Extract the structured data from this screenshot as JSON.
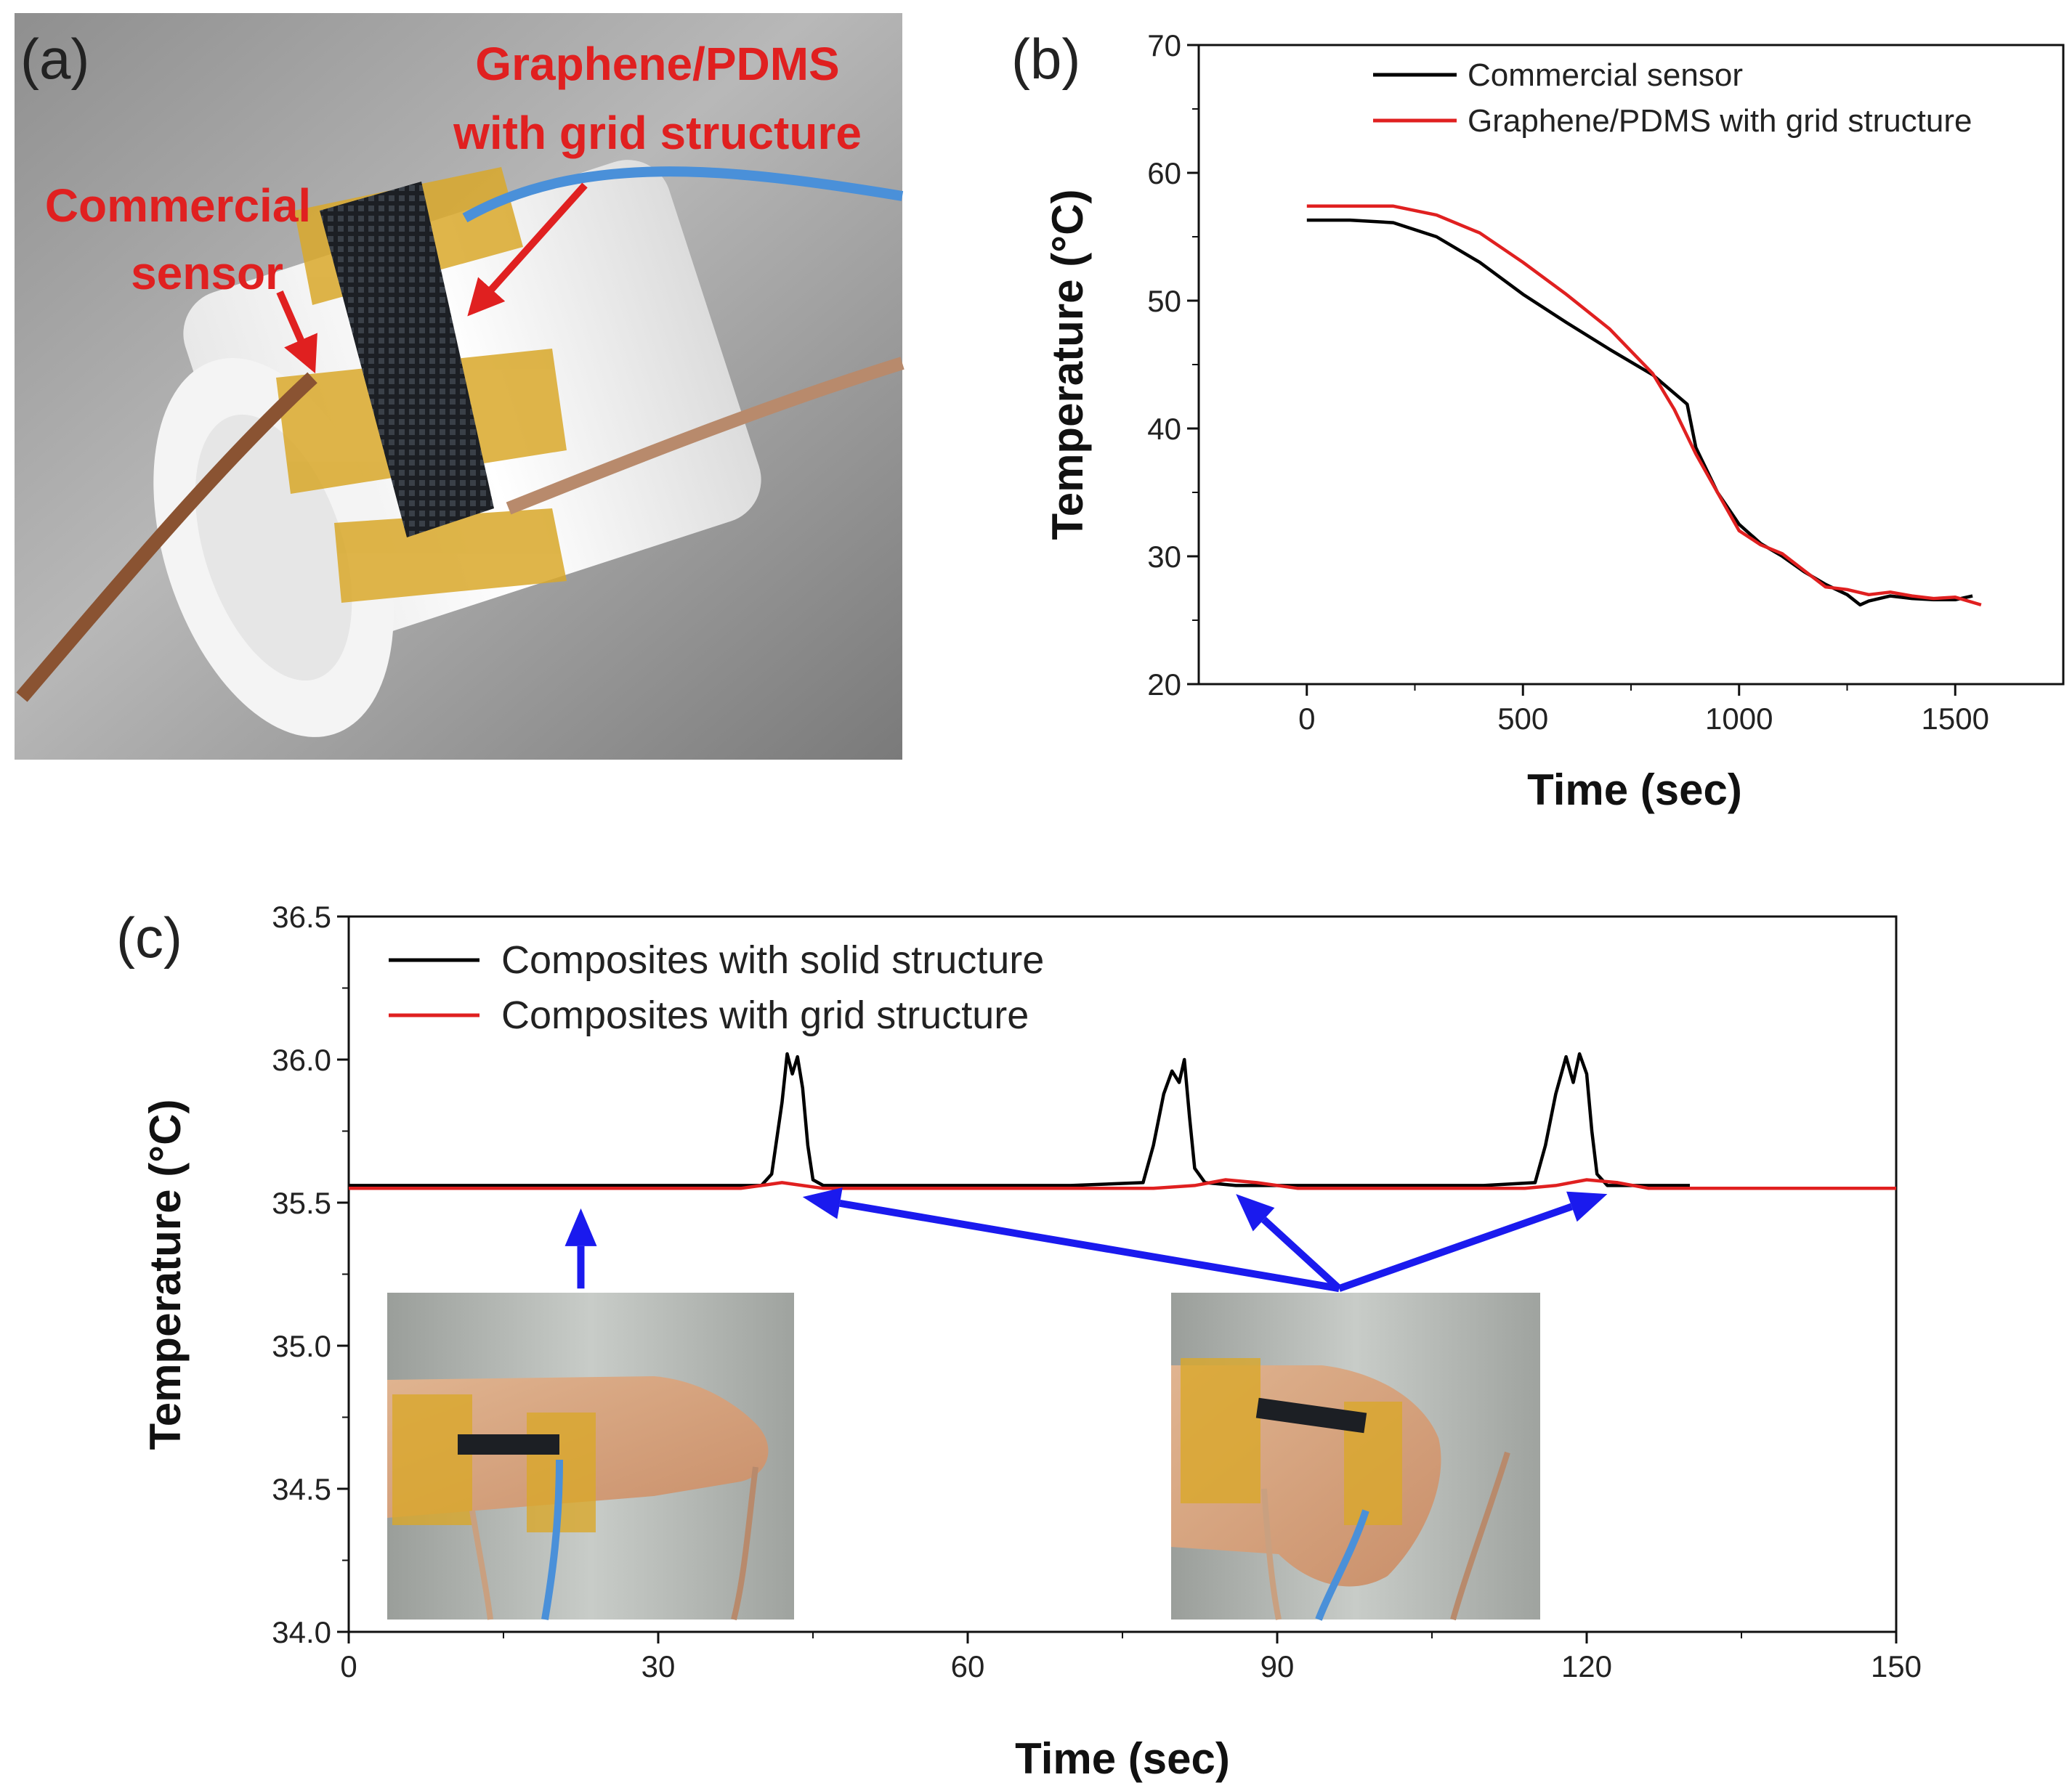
{
  "panels": {
    "a": {
      "label": "(a)",
      "annotation_graphene_line1": "Graphene/PDMS",
      "annotation_graphene_line2": "with grid structure",
      "annotation_commercial_line1": "Commercial",
      "annotation_commercial_line2": "sensor"
    },
    "b": {
      "label": "(b)"
    },
    "c": {
      "label": "(c)"
    }
  },
  "colors": {
    "commercial_or_solid": "#000000",
    "graphene_grid": "#e02020",
    "annotation_arrows": "#1a1aee",
    "photo_labels": "#e02020"
  },
  "chart_data": [
    {
      "type": "line",
      "panel": "(b)",
      "title": "",
      "xlabel": "Time (sec)",
      "ylabel": "Temperature (°C)",
      "xlim": [
        -250,
        1750
      ],
      "ylim": [
        20,
        70
      ],
      "xticks": [
        0,
        500,
        1000,
        1500
      ],
      "yticks": [
        20,
        30,
        40,
        50,
        60,
        70
      ],
      "legend_position": "top-right",
      "series": [
        {
          "name": "Commercial sensor",
          "color": "#000000",
          "x": [
            0,
            100,
            200,
            300,
            400,
            500,
            600,
            700,
            800,
            880,
            900,
            950,
            1000,
            1050,
            1100,
            1150,
            1200,
            1250,
            1280,
            1300,
            1350,
            1400,
            1450,
            1500,
            1540
          ],
          "y": [
            56.3,
            56.3,
            56.1,
            55.0,
            53.0,
            50.5,
            48.3,
            46.2,
            44.2,
            41.9,
            38.5,
            35.0,
            32.5,
            31.0,
            30.0,
            28.8,
            27.8,
            27.0,
            26.2,
            26.5,
            26.9,
            26.7,
            26.6,
            26.6,
            26.9
          ]
        },
        {
          "name": "Graphene/PDMS with grid structure",
          "color": "#e02020",
          "x": [
            0,
            100,
            200,
            300,
            400,
            500,
            600,
            700,
            800,
            850,
            900,
            950,
            1000,
            1050,
            1100,
            1150,
            1200,
            1250,
            1300,
            1350,
            1400,
            1450,
            1500,
            1560
          ],
          "y": [
            57.4,
            57.4,
            57.4,
            56.7,
            55.3,
            53.0,
            50.5,
            47.8,
            44.3,
            41.5,
            38.0,
            35.0,
            32.0,
            30.9,
            30.2,
            28.9,
            27.6,
            27.4,
            27.0,
            27.2,
            26.9,
            26.7,
            26.8,
            26.2
          ]
        }
      ]
    },
    {
      "type": "line",
      "panel": "(c)",
      "title": "",
      "xlabel": "Time (sec)",
      "ylabel": "Temperature (°C)",
      "xlim": [
        0,
        150
      ],
      "ylim": [
        34.0,
        36.5
      ],
      "xticks": [
        0,
        30,
        60,
        90,
        120,
        150
      ],
      "yticks": [
        34.0,
        34.5,
        35.0,
        35.5,
        36.0,
        36.5
      ],
      "legend_position": "top-left",
      "series": [
        {
          "name": "Composites with solid structure",
          "color": "#000000",
          "x": [
            0,
            20,
            40,
            41,
            42,
            42.5,
            43,
            43.5,
            44,
            44.5,
            45,
            46,
            50,
            70,
            77,
            78,
            79,
            79.8,
            80.5,
            81,
            81.5,
            82,
            83,
            86,
            110,
            115,
            116,
            117,
            118,
            118.7,
            119.3,
            120,
            120.5,
            121,
            122,
            125,
            130
          ],
          "y": [
            35.56,
            35.56,
            35.56,
            35.6,
            35.85,
            36.02,
            35.95,
            36.01,
            35.9,
            35.7,
            35.58,
            35.56,
            35.56,
            35.56,
            35.57,
            35.7,
            35.88,
            35.96,
            35.92,
            36.0,
            35.8,
            35.62,
            35.57,
            35.56,
            35.56,
            35.57,
            35.7,
            35.88,
            36.01,
            35.92,
            36.02,
            35.95,
            35.75,
            35.6,
            35.56,
            35.56,
            35.56
          ]
        },
        {
          "name": "Composites with grid structure",
          "color": "#e02020",
          "x": [
            0,
            38,
            40,
            42,
            44,
            46,
            78,
            82,
            85,
            88,
            92,
            114,
            117,
            120,
            123,
            126,
            150
          ],
          "y": [
            35.55,
            35.55,
            35.56,
            35.57,
            35.56,
            35.55,
            35.55,
            35.56,
            35.58,
            35.57,
            35.55,
            35.55,
            35.56,
            35.58,
            35.57,
            35.55,
            35.55
          ]
        }
      ],
      "annotations": [
        {
          "type": "arrow",
          "description": "from first inset photo to baseline",
          "from": [
            22.5,
            35.2
          ],
          "to": [
            22.5,
            35.48
          ]
        },
        {
          "type": "arrow",
          "description": "from second inset photo to event 1",
          "from": [
            96,
            35.2
          ],
          "to": [
            44,
            35.52
          ]
        },
        {
          "type": "arrow",
          "description": "from second inset photo to event 2",
          "from": [
            96,
            35.2
          ],
          "to": [
            86,
            35.53
          ]
        },
        {
          "type": "arrow",
          "description": "from second inset photo to event 3",
          "from": [
            96,
            35.2
          ],
          "to": [
            122,
            35.53
          ]
        }
      ]
    }
  ]
}
